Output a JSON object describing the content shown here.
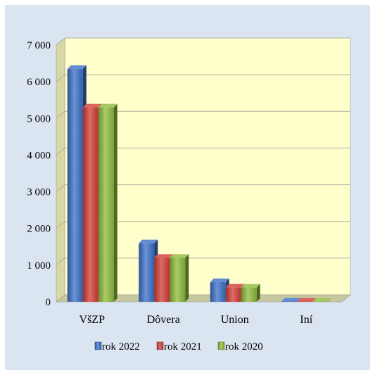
{
  "chart_data": {
    "type": "bar",
    "categories": [
      "VšZP",
      "Dôvera",
      "Union",
      "Iní"
    ],
    "series": [
      {
        "name": "rok 2022",
        "values": [
          6350,
          1600,
          540,
          10
        ],
        "color": "#3a6fc8"
      },
      {
        "name": "rok 2021",
        "values": [
          5300,
          1200,
          390,
          8
        ],
        "color": "#d23b34"
      },
      {
        "name": "rok 2020",
        "values": [
          5300,
          1200,
          390,
          8
        ],
        "color": "#8dbb3a"
      }
    ],
    "yticks": [
      "0",
      "1 000",
      "2 000",
      "3 000",
      "4 000",
      "5 000",
      "6 000",
      "7 000"
    ],
    "ylim": [
      0,
      7000
    ],
    "grid": true,
    "legend_position": "bottom",
    "background": "#dbe5f1",
    "plot_background": "#ffffcc"
  }
}
